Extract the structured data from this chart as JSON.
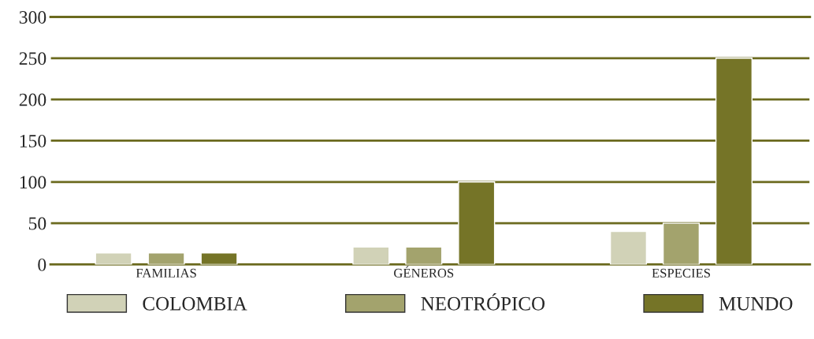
{
  "chart_data": {
    "type": "bar",
    "categories": [
      "FAMILIAS",
      "GÉNEROS",
      "ESPECIES"
    ],
    "series": [
      {
        "name": "COLOMBIA",
        "color": "#d1d2b7",
        "values": [
          14,
          21,
          40
        ]
      },
      {
        "name": "NEOTRÓPICO",
        "color": "#a3a36d",
        "values": [
          14,
          21,
          50
        ]
      },
      {
        "name": "MUNDO",
        "color": "#757427",
        "values": [
          14,
          100,
          250
        ]
      }
    ],
    "ylim": [
      0,
      300
    ],
    "yticks": [
      0,
      50,
      100,
      150,
      200,
      250,
      300
    ],
    "grid": "y",
    "legend": "bottom"
  }
}
